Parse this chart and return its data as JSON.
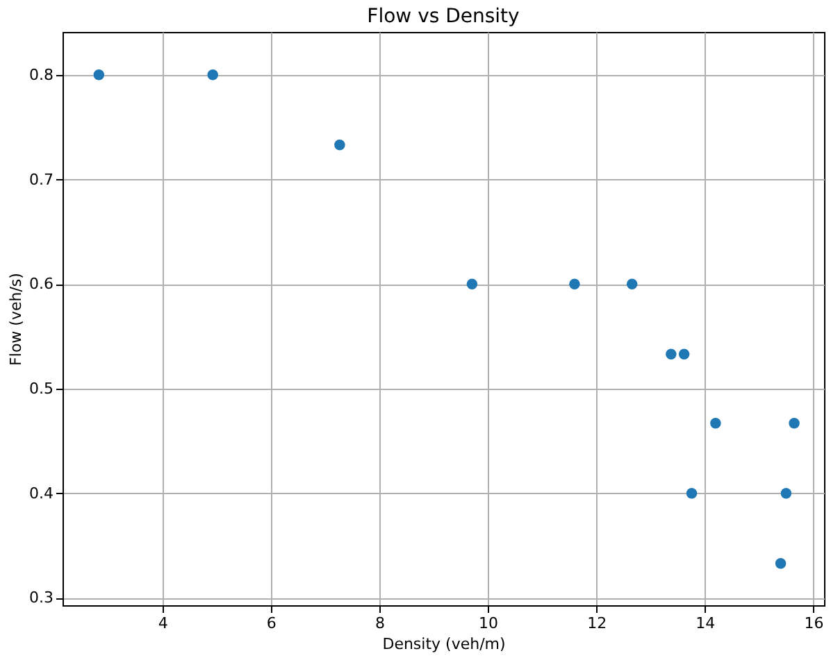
{
  "chart_data": {
    "type": "scatter",
    "title": "Flow vs Density",
    "xlabel": "Density (veh/m)",
    "ylabel": "Flow (veh/s)",
    "x": [
      2.83,
      4.93,
      7.27,
      9.71,
      11.6,
      12.66,
      13.38,
      13.62,
      14.2,
      15.65,
      13.76,
      15.5,
      15.4
    ],
    "series": [
      {
        "color": "#1f77b4",
        "values": [
          0.8,
          0.8,
          0.733,
          0.6,
          0.6,
          0.6,
          0.533,
          0.533,
          0.467,
          0.467,
          0.4,
          0.4,
          0.333
        ]
      }
    ],
    "xlim": [
      2.16,
      16.2
    ],
    "ylim": [
      0.293,
      0.841
    ],
    "xticks": [
      4,
      6,
      8,
      10,
      12,
      14,
      16
    ],
    "yticks": [
      0.3,
      0.4,
      0.5,
      0.6,
      0.7,
      0.8
    ],
    "grid": true,
    "marker": "circle"
  }
}
